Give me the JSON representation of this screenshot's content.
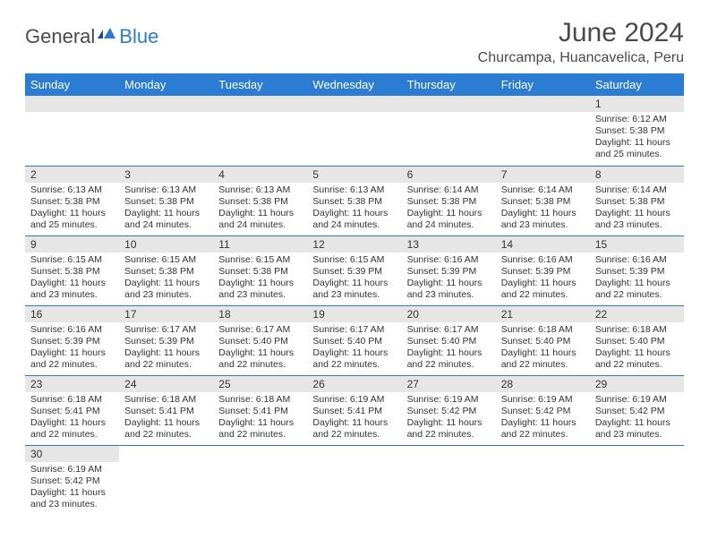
{
  "logo": {
    "text1": "General",
    "text2": "Blue"
  },
  "title": "June 2024",
  "location": "Churcampa, Huancavelica, Peru",
  "colors": {
    "header_bg": "#2b7cd3",
    "header_text": "#ffffff",
    "daynum_bg": "#e6e6e6",
    "border": "#2b7cd3",
    "body_text": "#333333"
  },
  "weekdays": [
    "Sunday",
    "Monday",
    "Tuesday",
    "Wednesday",
    "Thursday",
    "Friday",
    "Saturday"
  ],
  "weeks": [
    [
      null,
      null,
      null,
      null,
      null,
      null,
      {
        "n": "1",
        "sr": "6:12 AM",
        "ss": "5:38 PM",
        "dl": "11 hours and 25 minutes."
      }
    ],
    [
      {
        "n": "2",
        "sr": "6:13 AM",
        "ss": "5:38 PM",
        "dl": "11 hours and 25 minutes."
      },
      {
        "n": "3",
        "sr": "6:13 AM",
        "ss": "5:38 PM",
        "dl": "11 hours and 24 minutes."
      },
      {
        "n": "4",
        "sr": "6:13 AM",
        "ss": "5:38 PM",
        "dl": "11 hours and 24 minutes."
      },
      {
        "n": "5",
        "sr": "6:13 AM",
        "ss": "5:38 PM",
        "dl": "11 hours and 24 minutes."
      },
      {
        "n": "6",
        "sr": "6:14 AM",
        "ss": "5:38 PM",
        "dl": "11 hours and 24 minutes."
      },
      {
        "n": "7",
        "sr": "6:14 AM",
        "ss": "5:38 PM",
        "dl": "11 hours and 23 minutes."
      },
      {
        "n": "8",
        "sr": "6:14 AM",
        "ss": "5:38 PM",
        "dl": "11 hours and 23 minutes."
      }
    ],
    [
      {
        "n": "9",
        "sr": "6:15 AM",
        "ss": "5:38 PM",
        "dl": "11 hours and 23 minutes."
      },
      {
        "n": "10",
        "sr": "6:15 AM",
        "ss": "5:38 PM",
        "dl": "11 hours and 23 minutes."
      },
      {
        "n": "11",
        "sr": "6:15 AM",
        "ss": "5:38 PM",
        "dl": "11 hours and 23 minutes."
      },
      {
        "n": "12",
        "sr": "6:15 AM",
        "ss": "5:39 PM",
        "dl": "11 hours and 23 minutes."
      },
      {
        "n": "13",
        "sr": "6:16 AM",
        "ss": "5:39 PM",
        "dl": "11 hours and 23 minutes."
      },
      {
        "n": "14",
        "sr": "6:16 AM",
        "ss": "5:39 PM",
        "dl": "11 hours and 22 minutes."
      },
      {
        "n": "15",
        "sr": "6:16 AM",
        "ss": "5:39 PM",
        "dl": "11 hours and 22 minutes."
      }
    ],
    [
      {
        "n": "16",
        "sr": "6:16 AM",
        "ss": "5:39 PM",
        "dl": "11 hours and 22 minutes."
      },
      {
        "n": "17",
        "sr": "6:17 AM",
        "ss": "5:39 PM",
        "dl": "11 hours and 22 minutes."
      },
      {
        "n": "18",
        "sr": "6:17 AM",
        "ss": "5:40 PM",
        "dl": "11 hours and 22 minutes."
      },
      {
        "n": "19",
        "sr": "6:17 AM",
        "ss": "5:40 PM",
        "dl": "11 hours and 22 minutes."
      },
      {
        "n": "20",
        "sr": "6:17 AM",
        "ss": "5:40 PM",
        "dl": "11 hours and 22 minutes."
      },
      {
        "n": "21",
        "sr": "6:18 AM",
        "ss": "5:40 PM",
        "dl": "11 hours and 22 minutes."
      },
      {
        "n": "22",
        "sr": "6:18 AM",
        "ss": "5:40 PM",
        "dl": "11 hours and 22 minutes."
      }
    ],
    [
      {
        "n": "23",
        "sr": "6:18 AM",
        "ss": "5:41 PM",
        "dl": "11 hours and 22 minutes."
      },
      {
        "n": "24",
        "sr": "6:18 AM",
        "ss": "5:41 PM",
        "dl": "11 hours and 22 minutes."
      },
      {
        "n": "25",
        "sr": "6:18 AM",
        "ss": "5:41 PM",
        "dl": "11 hours and 22 minutes."
      },
      {
        "n": "26",
        "sr": "6:19 AM",
        "ss": "5:41 PM",
        "dl": "11 hours and 22 minutes."
      },
      {
        "n": "27",
        "sr": "6:19 AM",
        "ss": "5:42 PM",
        "dl": "11 hours and 22 minutes."
      },
      {
        "n": "28",
        "sr": "6:19 AM",
        "ss": "5:42 PM",
        "dl": "11 hours and 22 minutes."
      },
      {
        "n": "29",
        "sr": "6:19 AM",
        "ss": "5:42 PM",
        "dl": "11 hours and 23 minutes."
      }
    ],
    [
      {
        "n": "30",
        "sr": "6:19 AM",
        "ss": "5:42 PM",
        "dl": "11 hours and 23 minutes."
      },
      null,
      null,
      null,
      null,
      null,
      null
    ]
  ],
  "labels": {
    "sunrise": "Sunrise:",
    "sunset": "Sunset:",
    "daylight": "Daylight:"
  }
}
